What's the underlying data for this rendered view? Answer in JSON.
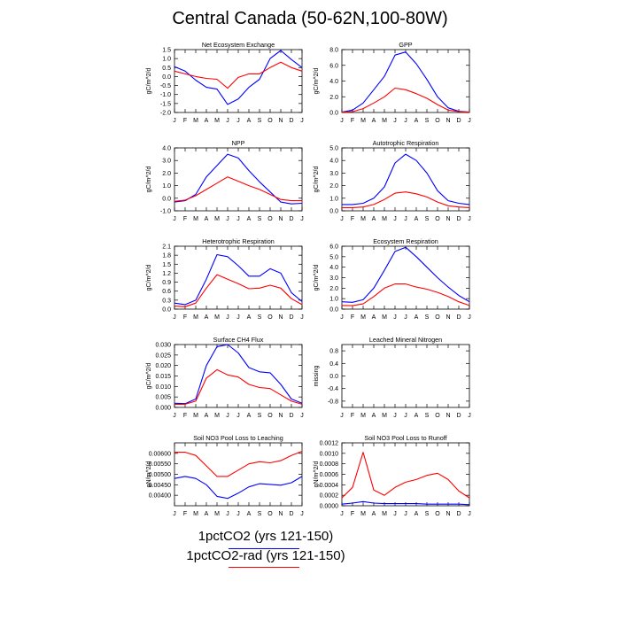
{
  "figure": {
    "title": "Central Canada (50-62N,100-80W)",
    "month_labels": [
      "J",
      "F",
      "M",
      "A",
      "M",
      "J",
      "J",
      "A",
      "S",
      "O",
      "N",
      "D",
      "J"
    ]
  },
  "legend": {
    "entries": [
      {
        "label": "1pctCO2 (yrs 121-150)",
        "color": "#0000ff"
      },
      {
        "label": "1pctCO2-rad (yrs 121-150)",
        "color": "#ff0000"
      }
    ]
  },
  "chart_data": [
    {
      "type": "line",
      "title": "Net Ecosystem Exchange",
      "ylabel": "gC/m^2/d",
      "ylim": [
        -2.0,
        1.5
      ],
      "yticks": [
        "1.5",
        "1.0",
        "0.5",
        "0.0",
        "-0.5",
        "-1.0",
        "-1.5",
        "-2.0"
      ],
      "x": [
        "J",
        "F",
        "M",
        "A",
        "M",
        "J",
        "J",
        "A",
        "S",
        "O",
        "N",
        "D",
        "J"
      ],
      "series": [
        {
          "name": "1pctCO2 (yrs 121-150)",
          "color": "#0000ff",
          "values": [
            0.55,
            0.3,
            -0.2,
            -0.6,
            -0.7,
            -1.55,
            -1.25,
            -0.6,
            -0.15,
            1.0,
            1.45,
            0.95,
            0.5
          ]
        },
        {
          "name": "1pctCO2-rad (yrs 121-150)",
          "color": "#ff0000",
          "values": [
            0.3,
            0.15,
            0.0,
            -0.1,
            -0.15,
            -0.65,
            -0.05,
            0.15,
            0.15,
            0.5,
            0.8,
            0.5,
            0.3
          ]
        }
      ]
    },
    {
      "type": "line",
      "title": "GPP",
      "ylabel": "gC/m^2/d",
      "ylim": [
        0,
        8
      ],
      "yticks": [
        "8.0",
        "6.0",
        "4.0",
        "2.0",
        "0.0"
      ],
      "x": [
        "J",
        "F",
        "M",
        "A",
        "M",
        "J",
        "J",
        "A",
        "S",
        "O",
        "N",
        "D",
        "J"
      ],
      "series": [
        {
          "name": "1pctCO2 (yrs 121-150)",
          "color": "#0000ff",
          "values": [
            0.05,
            0.3,
            1.2,
            2.9,
            4.6,
            7.3,
            7.7,
            6.2,
            4.2,
            2.0,
            0.6,
            0.15,
            0.05
          ]
        },
        {
          "name": "1pctCO2-rad (yrs 121-150)",
          "color": "#ff0000",
          "values": [
            0.05,
            0.1,
            0.5,
            1.2,
            2.0,
            3.1,
            2.9,
            2.4,
            1.8,
            1.0,
            0.3,
            0.1,
            0.05
          ]
        }
      ]
    },
    {
      "type": "line",
      "title": "NPP",
      "ylabel": "gC/m^2/d",
      "ylim": [
        -1.0,
        4.0
      ],
      "yticks": [
        "4.0",
        "3.0",
        "2.0",
        "1.0",
        "0.0",
        "-1.0"
      ],
      "x": [
        "J",
        "F",
        "M",
        "A",
        "M",
        "J",
        "J",
        "A",
        "S",
        "O",
        "N",
        "D",
        "J"
      ],
      "series": [
        {
          "name": "1pctCO2 (yrs 121-150)",
          "color": "#0000ff",
          "values": [
            -0.3,
            -0.2,
            0.3,
            1.7,
            2.6,
            3.5,
            3.2,
            2.2,
            1.3,
            0.5,
            -0.3,
            -0.45,
            -0.4
          ]
        },
        {
          "name": "1pctCO2-rad (yrs 121-150)",
          "color": "#ff0000",
          "values": [
            -0.25,
            -0.15,
            0.2,
            0.7,
            1.2,
            1.7,
            1.35,
            1.0,
            0.7,
            0.3,
            -0.1,
            -0.2,
            -0.2
          ]
        }
      ]
    },
    {
      "type": "line",
      "title": "Autotrophic Respiration",
      "ylabel": "gC/m^2/d",
      "ylim": [
        0,
        5
      ],
      "yticks": [
        "5.0",
        "4.0",
        "3.0",
        "2.0",
        "1.0",
        "0.0"
      ],
      "x": [
        "J",
        "F",
        "M",
        "A",
        "M",
        "J",
        "J",
        "A",
        "S",
        "O",
        "N",
        "D",
        "J"
      ],
      "series": [
        {
          "name": "1pctCO2 (yrs 121-150)",
          "color": "#0000ff",
          "values": [
            0.5,
            0.5,
            0.6,
            1.0,
            1.9,
            3.8,
            4.5,
            4.0,
            3.0,
            1.6,
            0.8,
            0.6,
            0.5
          ]
        },
        {
          "name": "1pctCO2-rad (yrs 121-150)",
          "color": "#ff0000",
          "values": [
            0.25,
            0.25,
            0.3,
            0.5,
            0.9,
            1.4,
            1.5,
            1.35,
            1.1,
            0.7,
            0.4,
            0.3,
            0.25
          ]
        }
      ]
    },
    {
      "type": "line",
      "title": "Heterotrophic Respiration",
      "ylabel": "gC/m^2/d",
      "ylim": [
        0.0,
        2.1
      ],
      "yticks": [
        "2.1",
        "1.8",
        "1.5",
        "1.2",
        "0.9",
        "0.6",
        "0.3",
        "0.0"
      ],
      "x": [
        "J",
        "F",
        "M",
        "A",
        "M",
        "J",
        "J",
        "A",
        "S",
        "O",
        "N",
        "D",
        "J"
      ],
      "series": [
        {
          "name": "1pctCO2 (yrs 121-150)",
          "color": "#0000ff",
          "values": [
            0.2,
            0.15,
            0.3,
            1.0,
            1.82,
            1.75,
            1.45,
            1.1,
            1.1,
            1.35,
            1.2,
            0.55,
            0.25
          ]
        },
        {
          "name": "1pctCO2-rad (yrs 121-150)",
          "color": "#ff0000",
          "values": [
            0.1,
            0.08,
            0.2,
            0.7,
            1.15,
            1.0,
            0.85,
            0.68,
            0.7,
            0.8,
            0.7,
            0.35,
            0.15
          ]
        }
      ]
    },
    {
      "type": "line",
      "title": "Ecosystem Respiration",
      "ylabel": "gC/m^2/d",
      "ylim": [
        0,
        6
      ],
      "yticks": [
        "6.0",
        "5.0",
        "4.0",
        "3.0",
        "2.0",
        "1.0",
        "0.0"
      ],
      "x": [
        "J",
        "F",
        "M",
        "A",
        "M",
        "J",
        "J",
        "A",
        "S",
        "O",
        "N",
        "D",
        "J"
      ],
      "series": [
        {
          "name": "1pctCO2 (yrs 121-150)",
          "color": "#0000ff",
          "values": [
            0.7,
            0.65,
            0.9,
            2.0,
            3.7,
            5.5,
            5.9,
            5.0,
            4.0,
            3.0,
            2.1,
            1.3,
            0.7
          ]
        },
        {
          "name": "1pctCO2-rad (yrs 121-150)",
          "color": "#ff0000",
          "values": [
            0.35,
            0.33,
            0.5,
            1.2,
            2.0,
            2.4,
            2.4,
            2.1,
            1.9,
            1.6,
            1.2,
            0.7,
            0.35
          ]
        }
      ]
    },
    {
      "type": "line",
      "title": "Surface CH4 Flux",
      "ylabel": "gC/m^2/d",
      "ylim": [
        0.0,
        0.03
      ],
      "yticks": [
        "0.030",
        "0.025",
        "0.020",
        "0.015",
        "0.010",
        "0.005",
        "0.000"
      ],
      "x": [
        "J",
        "F",
        "M",
        "A",
        "M",
        "J",
        "J",
        "A",
        "S",
        "O",
        "N",
        "D",
        "J"
      ],
      "series": [
        {
          "name": "1pctCO2 (yrs 121-150)",
          "color": "#0000ff",
          "values": [
            0.002,
            0.0018,
            0.004,
            0.02,
            0.029,
            0.03,
            0.026,
            0.019,
            0.017,
            0.0165,
            0.011,
            0.004,
            0.002
          ]
        },
        {
          "name": "1pctCO2-rad (yrs 121-150)",
          "color": "#ff0000",
          "values": [
            0.0015,
            0.0015,
            0.003,
            0.014,
            0.018,
            0.0155,
            0.0145,
            0.011,
            0.0095,
            0.009,
            0.006,
            0.003,
            0.0015
          ]
        }
      ]
    },
    {
      "type": "line",
      "title": "Leached Mineral Nitrogen",
      "ylabel": "missing",
      "ylim": [
        -1.0,
        1.0
      ],
      "yticks": [
        "0.8",
        "0.4",
        "0.0",
        "-0.4",
        "-0.8"
      ],
      "ytick_values": [
        0.8,
        0.4,
        0.0,
        -0.4,
        -0.8
      ],
      "x": [
        "J",
        "F",
        "M",
        "A",
        "M",
        "J",
        "J",
        "A",
        "S",
        "O",
        "N",
        "D",
        "J"
      ],
      "series": []
    },
    {
      "type": "line",
      "title": "Soil NO3 Pool Loss to Leaching",
      "ylabel": "gN/m^2/d",
      "ylim": [
        0.0035,
        0.0065
      ],
      "yticks": [
        "0.00600",
        "0.00550",
        "0.00500",
        "0.00450",
        "0.00400"
      ],
      "ytick_values": [
        0.006,
        0.0055,
        0.005,
        0.0045,
        0.004
      ],
      "x": [
        "J",
        "F",
        "M",
        "A",
        "M",
        "J",
        "J",
        "A",
        "S",
        "O",
        "N",
        "D",
        "J"
      ],
      "series": [
        {
          "name": "1pctCO2 (yrs 121-150)",
          "color": "#0000ff",
          "values": [
            0.0048,
            0.0049,
            0.0048,
            0.0045,
            0.00395,
            0.00385,
            0.0041,
            0.0044,
            0.00455,
            0.00452,
            0.00448,
            0.0046,
            0.0049
          ]
        },
        {
          "name": "1pctCO2-rad (yrs 121-150)",
          "color": "#ff0000",
          "values": [
            0.00605,
            0.00605,
            0.0059,
            0.0054,
            0.0049,
            0.0049,
            0.0052,
            0.0055,
            0.0056,
            0.00555,
            0.00565,
            0.0059,
            0.0061
          ]
        }
      ]
    },
    {
      "type": "line",
      "title": "Soil NO3 Pool Loss to Runoff",
      "ylabel": "gN/m^2/d",
      "ylim": [
        0.0,
        0.0012
      ],
      "yticks": [
        "0.0012",
        "0.0010",
        "0.0008",
        "0.0006",
        "0.0004",
        "0.0002",
        "0.0000"
      ],
      "x": [
        "J",
        "F",
        "M",
        "A",
        "M",
        "J",
        "J",
        "A",
        "S",
        "O",
        "N",
        "D",
        "J"
      ],
      "series": [
        {
          "name": "1pctCO2 (yrs 121-150)",
          "color": "#0000ff",
          "values": [
            3e-05,
            5e-05,
            8e-05,
            5e-05,
            4e-05,
            4e-05,
            4e-05,
            4e-05,
            3e-05,
            3e-05,
            3e-05,
            3e-05,
            2e-05
          ]
        },
        {
          "name": "1pctCO2-rad (yrs 121-150)",
          "color": "#ff0000",
          "values": [
            0.00015,
            0.00035,
            0.00102,
            0.0003,
            0.0002,
            0.00035,
            0.00045,
            0.0005,
            0.00058,
            0.00062,
            0.0005,
            0.00028,
            0.00015
          ]
        }
      ]
    }
  ]
}
